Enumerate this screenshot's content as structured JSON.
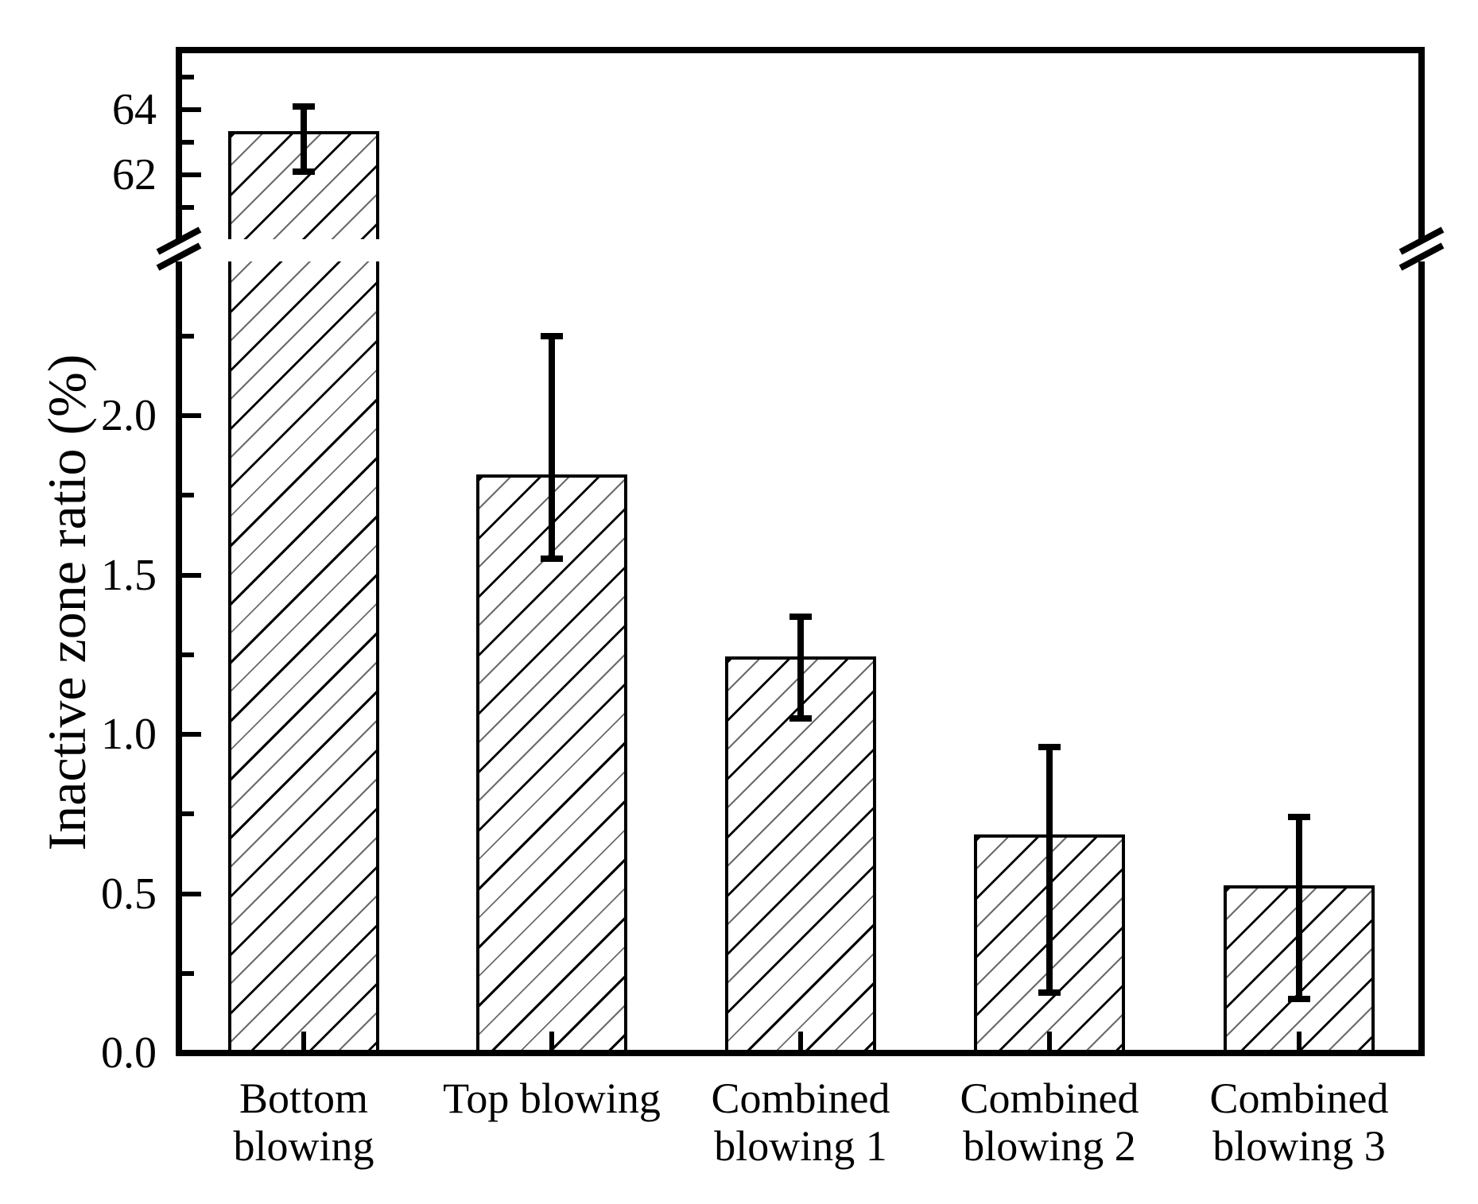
{
  "chart_data": {
    "type": "bar",
    "title": "",
    "xlabel": "",
    "ylabel": "Inactive zone ratio (%)",
    "categories": [
      "Bottom blowing",
      "Top blowing",
      "Combined blowing 1",
      "Combined blowing 2",
      "Combined blowing 3"
    ],
    "category_lines": [
      [
        "Bottom",
        "blowing"
      ],
      [
        "Top blowing"
      ],
      [
        "Combined",
        "blowing 1"
      ],
      [
        "Combined",
        "blowing 2"
      ],
      [
        "Combined",
        "blowing 3"
      ]
    ],
    "values": [
      63.3,
      1.81,
      1.24,
      0.68,
      0.52
    ],
    "error_high": [
      64.1,
      2.25,
      1.37,
      0.96,
      0.74
    ],
    "error_low": [
      62.1,
      1.55,
      1.05,
      0.19,
      0.17
    ],
    "y_axis_break": {
      "lower_segment_range": [
        0.0,
        2.45
      ],
      "upper_segment_range": [
        60.9,
        65.8
      ]
    },
    "y_ticks_lower": {
      "major_values": [
        0.0,
        0.5,
        1.0,
        1.5,
        2.0
      ],
      "major_labels": [
        "0.0",
        "0.5",
        "1.0",
        "1.5",
        "2.0"
      ],
      "minor_values": [
        0.25,
        0.75,
        1.25,
        1.75,
        2.25
      ]
    },
    "y_ticks_upper": {
      "major_values": [
        62,
        64
      ],
      "major_labels": [
        "62",
        "64"
      ],
      "minor_values": [
        61,
        63,
        65
      ]
    },
    "bar_style": {
      "fill": "#ffffff",
      "hatch": "diagonal-forward-slash",
      "edge_color": "#000000"
    },
    "grid": false,
    "legend": null,
    "colors": {
      "foreground": "#000000",
      "background": "#ffffff"
    }
  }
}
